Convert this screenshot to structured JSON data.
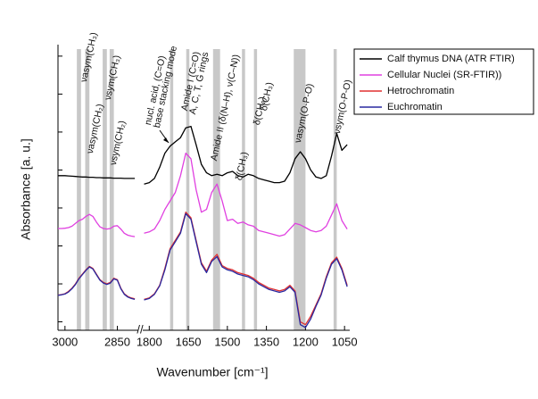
{
  "chart_data": {
    "type": "line",
    "x_label": "Wavenumber [cm⁻¹]",
    "y_label": "Absorbance [a. u.]",
    "x_segments": [
      {
        "xlim": [
          3020,
          2790
        ],
        "xticks": [
          3000,
          2850
        ]
      },
      {
        "xlim": [
          1825,
          1030
        ],
        "xticks": [
          1800,
          1650,
          1500,
          1350,
          1200,
          1050
        ]
      }
    ],
    "ylim": [
      0,
      10
    ],
    "yticks": [
      0.3,
      1.65,
      3,
      4.35,
      5.7,
      7.05,
      8.4,
      9.75
    ],
    "ytick_labels": false,
    "legend": "upper right outside",
    "band_color": "#c8c8c8",
    "bands": [
      {
        "from": 2966,
        "to": 2954
      },
      {
        "from": 2942,
        "to": 2930
      },
      {
        "from": 2892,
        "to": 2880
      },
      {
        "from": 2872,
        "to": 2860
      },
      {
        "from": 1720,
        "to": 1708
      },
      {
        "from": 1658,
        "to": 1646
      },
      {
        "from": 1555,
        "to": 1528
      },
      {
        "from": 1444,
        "to": 1432
      },
      {
        "from": 1398,
        "to": 1386
      },
      {
        "from": 1245,
        "to": 1200
      },
      {
        "from": 1092,
        "to": 1080
      }
    ],
    "annotations": [
      "νasym(CH₃)",
      "νasym(CH₂)",
      "νsym(CH₃)",
      "νsym(CH₂)",
      "nucl. acid, (C=O)",
      "base stacking mode",
      "Amide I (C=O)",
      "A, C, T, G rings",
      "Amide II (δ(N–H), ν(C–N))",
      "δ(CH₃)",
      "δ(CH₂)",
      "δ(CH₃)",
      "νasym(O-P-O)",
      "νsym(O-P-O)"
    ],
    "x": [
      3020,
      3010,
      3000,
      2990,
      2980,
      2970,
      2960,
      2950,
      2940,
      2930,
      2920,
      2910,
      2900,
      2890,
      2880,
      2870,
      2860,
      2850,
      2840,
      2830,
      2820,
      2810,
      2800,
      1820,
      1800,
      1780,
      1760,
      1740,
      1720,
      1700,
      1680,
      1660,
      1640,
      1620,
      1600,
      1580,
      1560,
      1540,
      1520,
      1500,
      1480,
      1460,
      1440,
      1420,
      1400,
      1380,
      1360,
      1340,
      1320,
      1300,
      1280,
      1260,
      1240,
      1220,
      1200,
      1180,
      1160,
      1140,
      1120,
      1100,
      1080,
      1060,
      1040
    ],
    "series": [
      {
        "name": "Calf thymus DNA (ATR FTIR)",
        "color": "#000000",
        "values": [
          5.5,
          5.5,
          5.5,
          5.49,
          5.48,
          5.47,
          5.46,
          5.45,
          5.45,
          5.44,
          5.44,
          5.43,
          5.43,
          5.42,
          5.42,
          5.42,
          5.41,
          5.41,
          5.41,
          5.4,
          5.4,
          5.4,
          5.4,
          5.2,
          5.25,
          5.4,
          5.8,
          6.3,
          6.55,
          6.7,
          6.85,
          7.2,
          7.25,
          6.6,
          5.9,
          5.6,
          5.5,
          5.55,
          5.5,
          5.6,
          5.65,
          5.5,
          5.45,
          5.55,
          5.5,
          5.4,
          5.35,
          5.3,
          5.25,
          5.25,
          5.3,
          5.6,
          6.1,
          6.35,
          6.1,
          5.7,
          5.45,
          5.4,
          5.5,
          6.2,
          7.0,
          6.4,
          6.6
        ]
      },
      {
        "name": "Cellular Nuclei (SR-FTIR))",
        "color": "#e040e0",
        "values": [
          3.62,
          3.62,
          3.63,
          3.65,
          3.7,
          3.8,
          3.9,
          3.95,
          4.05,
          4.12,
          4.05,
          3.85,
          3.68,
          3.62,
          3.6,
          3.62,
          3.7,
          3.72,
          3.6,
          3.45,
          3.38,
          3.35,
          3.33,
          3.45,
          3.5,
          3.6,
          3.9,
          4.3,
          4.6,
          4.9,
          5.5,
          6.3,
          6.1,
          5.0,
          4.2,
          4.3,
          4.9,
          5.2,
          4.6,
          3.9,
          3.95,
          3.8,
          3.85,
          3.75,
          3.7,
          3.55,
          3.5,
          3.45,
          3.4,
          3.35,
          3.4,
          3.6,
          3.8,
          3.75,
          3.65,
          3.55,
          3.5,
          3.55,
          3.7,
          4.1,
          4.5,
          3.9,
          3.6
        ]
      },
      {
        "name": "Hetrochromatin",
        "color": "#e03030",
        "values": [
          1.25,
          1.27,
          1.3,
          1.38,
          1.5,
          1.65,
          1.85,
          2.0,
          2.15,
          2.27,
          2.2,
          2.0,
          1.8,
          1.7,
          1.65,
          1.7,
          1.85,
          1.8,
          1.5,
          1.3,
          1.2,
          1.15,
          1.12,
          1.1,
          1.15,
          1.3,
          1.6,
          2.2,
          2.9,
          3.2,
          3.5,
          4.2,
          4.0,
          3.2,
          2.4,
          2.1,
          2.5,
          2.7,
          2.3,
          2.2,
          2.15,
          2.05,
          2.0,
          1.95,
          1.85,
          1.7,
          1.6,
          1.5,
          1.45,
          1.4,
          1.45,
          1.6,
          1.4,
          0.3,
          0.2,
          0.5,
          0.9,
          1.3,
          1.9,
          2.4,
          2.6,
          2.2,
          1.6
        ]
      },
      {
        "name": "Euchromatin",
        "color": "#2828a0",
        "values": [
          1.24,
          1.26,
          1.29,
          1.36,
          1.48,
          1.63,
          1.83,
          1.98,
          2.13,
          2.25,
          2.18,
          1.98,
          1.78,
          1.68,
          1.63,
          1.68,
          1.83,
          1.78,
          1.48,
          1.28,
          1.18,
          1.13,
          1.1,
          1.08,
          1.13,
          1.28,
          1.58,
          2.15,
          2.85,
          3.15,
          3.45,
          4.15,
          3.95,
          3.15,
          2.35,
          2.05,
          2.45,
          2.62,
          2.25,
          2.15,
          2.1,
          2.0,
          1.95,
          1.9,
          1.8,
          1.65,
          1.55,
          1.45,
          1.4,
          1.35,
          1.4,
          1.55,
          1.35,
          0.2,
          0.1,
          0.4,
          0.85,
          1.25,
          1.85,
          2.35,
          2.55,
          2.15,
          1.55
        ]
      }
    ]
  }
}
